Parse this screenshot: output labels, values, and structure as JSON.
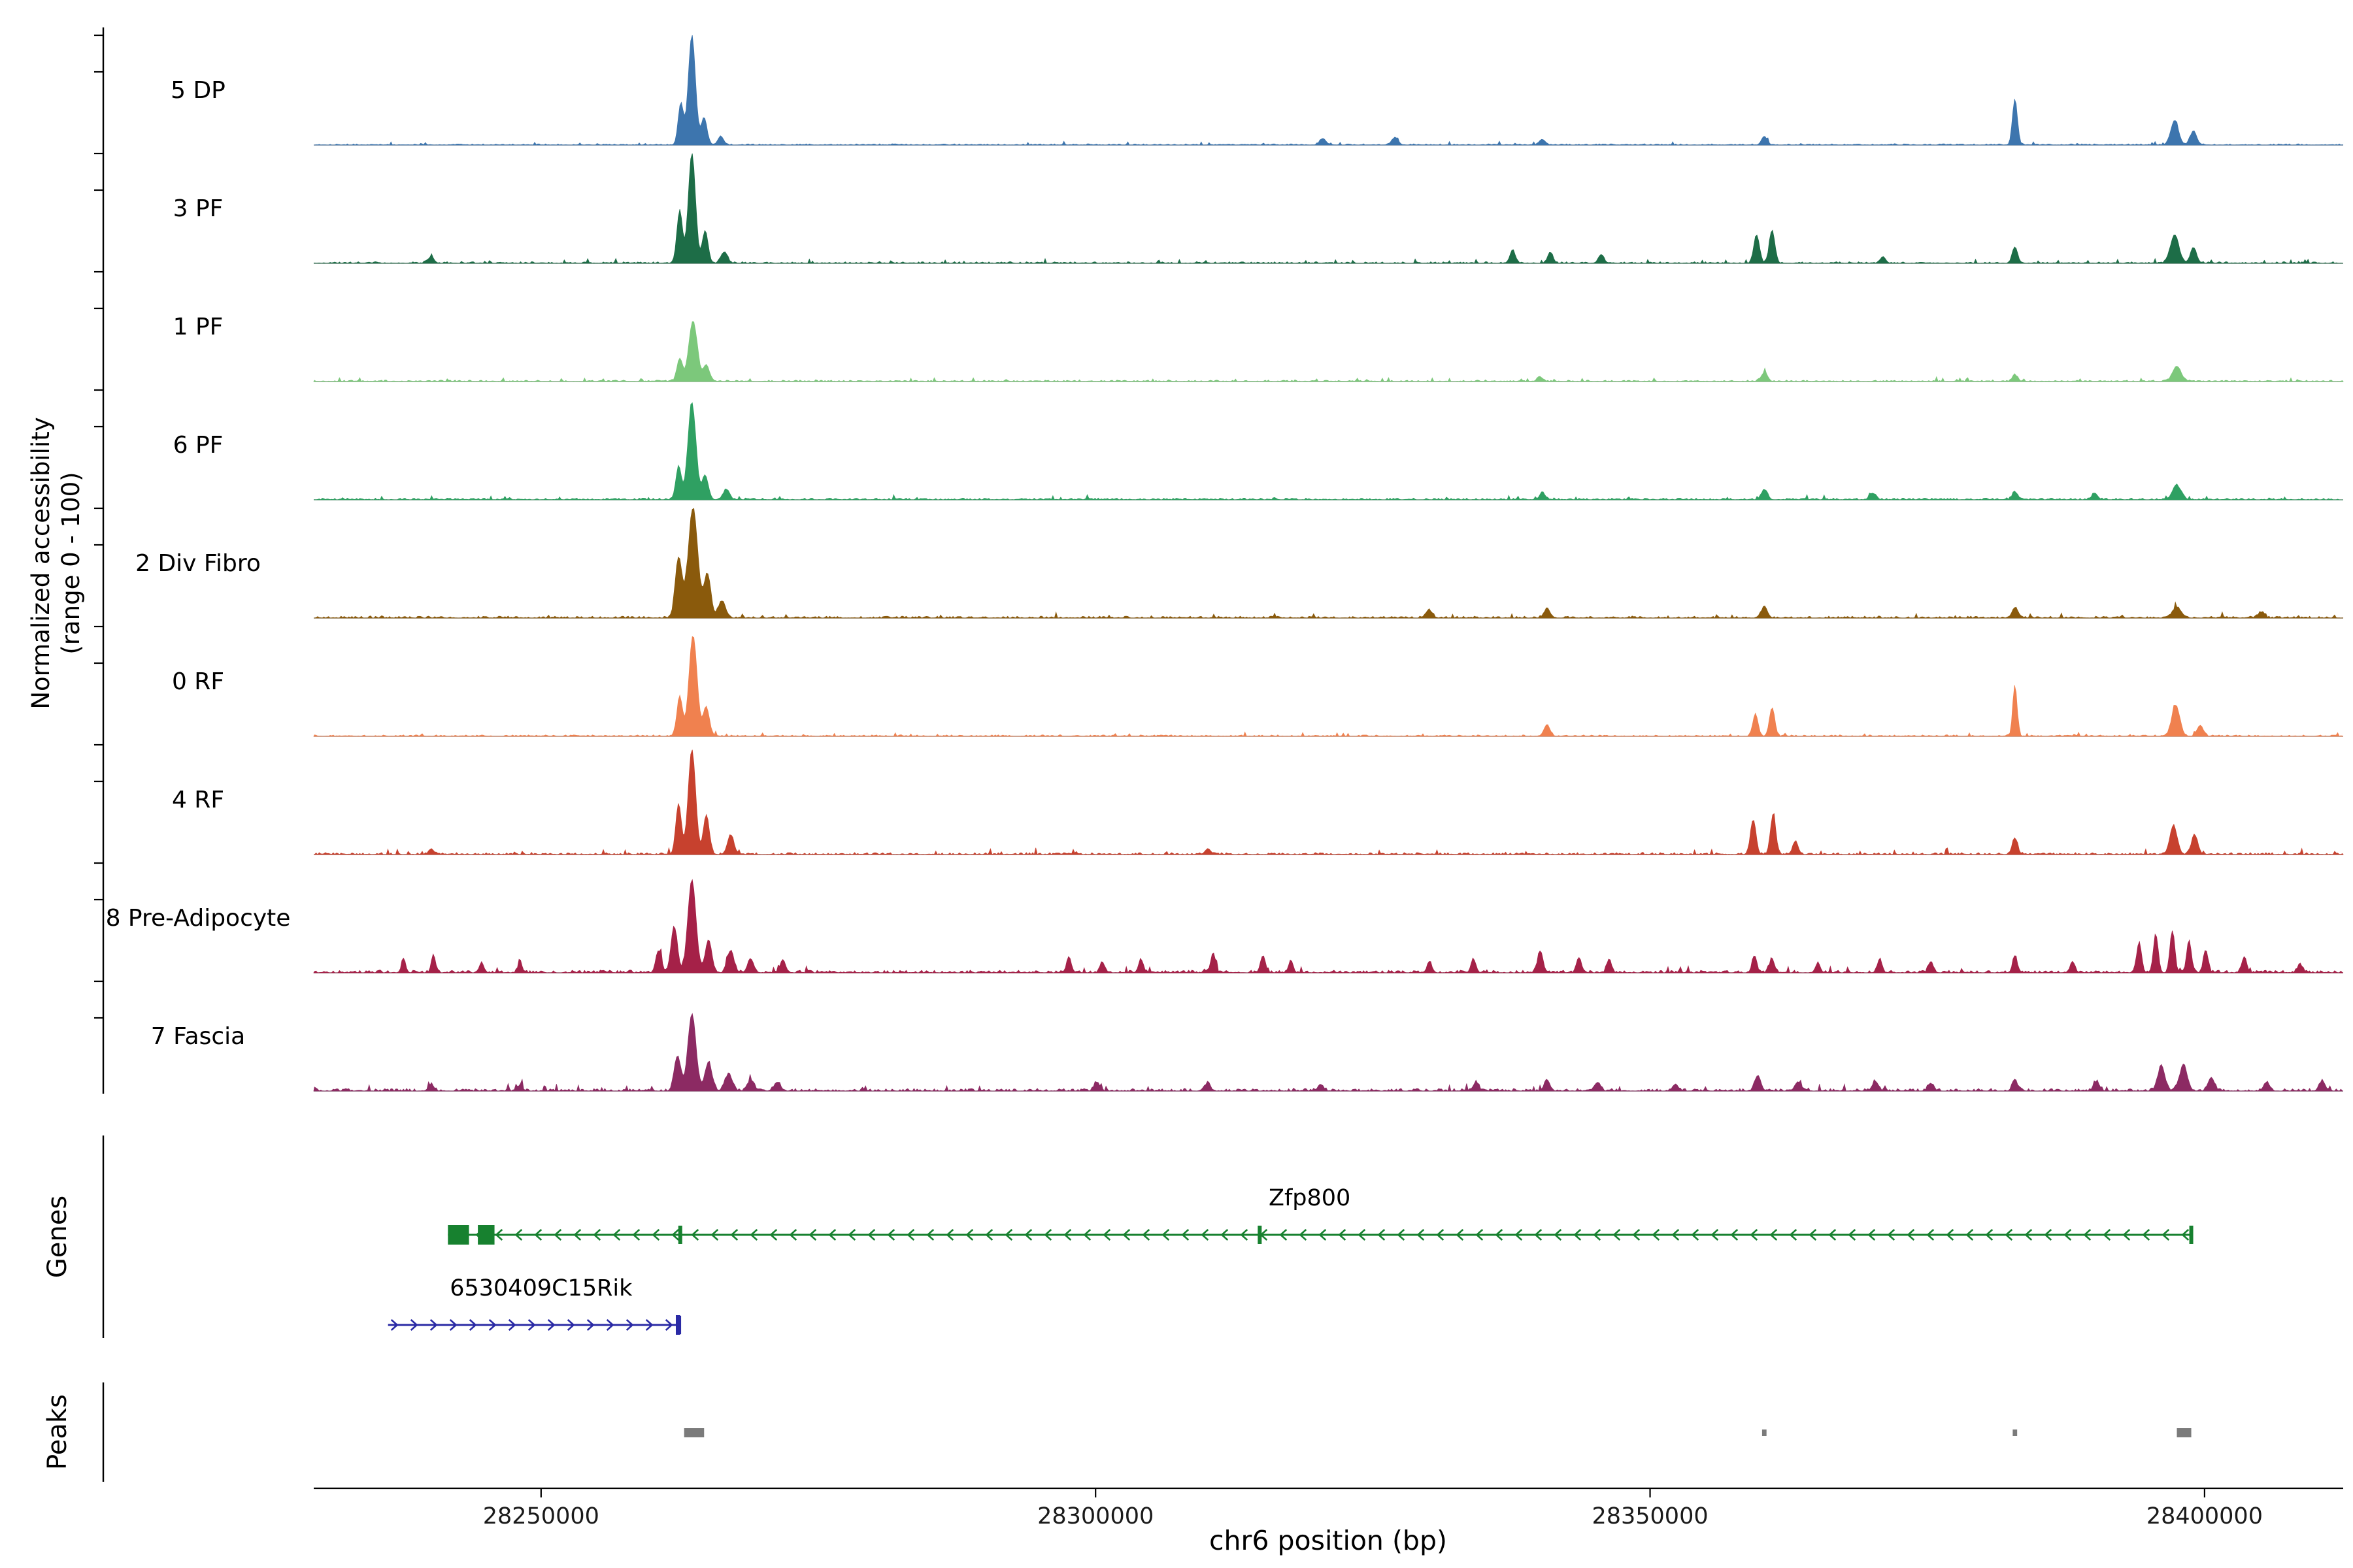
{
  "figure": {
    "y_label_line1": "Normalized accessibility",
    "y_label_line2": "(range 0 - 100)",
    "genes_section_label": "Genes",
    "peaks_section_label": "Peaks",
    "x_axis_title": "chr6 position (bp)"
  },
  "chart_data": {
    "type": "area",
    "title": "",
    "xlabel": "chr6 position (bp)",
    "ylabel": "Normalized accessibility (range 0 - 100)",
    "region": {
      "chrom": "chr6",
      "start": 28229500,
      "end": 28412500
    },
    "track_value_range": [
      0,
      100
    ],
    "x_ticks": [
      {
        "bp": 28250000,
        "label": "28250000"
      },
      {
        "bp": 28300000,
        "label": "28300000"
      },
      {
        "bp": 28350000,
        "label": "28350000"
      },
      {
        "bp": 28400000,
        "label": "28400000"
      }
    ],
    "tracks": [
      {
        "label": "5 DP",
        "color": "#3D75AE",
        "seed": 101,
        "noise": 1.6,
        "peaks": [
          [
            28263600,
            100,
            320
          ],
          [
            28262600,
            38,
            240
          ],
          [
            28264700,
            25,
            260
          ],
          [
            28266200,
            8,
            260
          ],
          [
            28320500,
            6,
            280
          ],
          [
            28327000,
            7,
            280
          ],
          [
            28340300,
            5,
            260
          ],
          [
            28360300,
            8,
            250
          ],
          [
            28382900,
            42,
            220
          ],
          [
            28397300,
            22,
            350
          ],
          [
            28399000,
            13,
            280
          ]
        ]
      },
      {
        "label": "3 PF",
        "color": "#1D6D47",
        "seed": 202,
        "noise": 2.1,
        "peaks": [
          [
            28263600,
            100,
            320
          ],
          [
            28262500,
            48,
            250
          ],
          [
            28264800,
            30,
            250
          ],
          [
            28266500,
            10,
            280
          ],
          [
            28240000,
            5,
            250
          ],
          [
            28337600,
            12,
            240
          ],
          [
            28341000,
            10,
            240
          ],
          [
            28345600,
            8,
            240
          ],
          [
            28359600,
            26,
            250
          ],
          [
            28361000,
            30,
            250
          ],
          [
            28371000,
            6,
            240
          ],
          [
            28382900,
            15,
            240
          ],
          [
            28397300,
            26,
            380
          ],
          [
            28399000,
            14,
            280
          ]
        ]
      },
      {
        "label": "1 PF",
        "color": "#7CC87B",
        "seed": 303,
        "noise": 1.9,
        "peaks": [
          [
            28263700,
            55,
            380
          ],
          [
            28262500,
            20,
            250
          ],
          [
            28264900,
            15,
            280
          ],
          [
            28340100,
            4,
            260
          ],
          [
            28360300,
            8,
            280
          ],
          [
            28382900,
            6,
            240
          ],
          [
            28397500,
            14,
            380
          ]
        ]
      },
      {
        "label": "6 PF",
        "color": "#2FA062",
        "seed": 404,
        "noise": 2.2,
        "peaks": [
          [
            28263600,
            88,
            360
          ],
          [
            28262400,
            30,
            250
          ],
          [
            28264800,
            22,
            280
          ],
          [
            28266700,
            9,
            280
          ],
          [
            28340300,
            6,
            260
          ],
          [
            28360300,
            9,
            280
          ],
          [
            28370100,
            6,
            250
          ],
          [
            28382900,
            7,
            250
          ],
          [
            28390100,
            6,
            250
          ],
          [
            28397500,
            13,
            380
          ]
        ]
      },
      {
        "label": "2 Div Fibro",
        "color": "#8A5A0C",
        "seed": 505,
        "noise": 2.5,
        "peaks": [
          [
            28263700,
            100,
            430
          ],
          [
            28262400,
            55,
            300
          ],
          [
            28265000,
            40,
            300
          ],
          [
            28266300,
            15,
            340
          ],
          [
            28330100,
            7,
            280
          ],
          [
            28340700,
            8,
            280
          ],
          [
            28360300,
            10,
            280
          ],
          [
            28382900,
            9,
            250
          ],
          [
            28397500,
            10,
            380
          ],
          [
            28405100,
            5,
            280
          ]
        ]
      },
      {
        "label": "0 RF",
        "color": "#F0814F",
        "seed": 606,
        "noise": 1.9,
        "peaks": [
          [
            28263700,
            92,
            360
          ],
          [
            28262500,
            36,
            250
          ],
          [
            28264900,
            26,
            280
          ],
          [
            28340700,
            10,
            280
          ],
          [
            28359500,
            20,
            240
          ],
          [
            28361000,
            26,
            240
          ],
          [
            28382900,
            47,
            190
          ],
          [
            28397400,
            28,
            360
          ],
          [
            28399600,
            10,
            280
          ]
        ]
      },
      {
        "label": "4 RF",
        "color": "#C7412E",
        "seed": 707,
        "noise": 2.6,
        "peaks": [
          [
            28263600,
            96,
            330
          ],
          [
            28262400,
            46,
            250
          ],
          [
            28264900,
            36,
            270
          ],
          [
            28267100,
            18,
            290
          ],
          [
            28240100,
            5,
            240
          ],
          [
            28310100,
            5,
            240
          ],
          [
            28359300,
            32,
            240
          ],
          [
            28361100,
            36,
            240
          ],
          [
            28363100,
            12,
            240
          ],
          [
            28382900,
            15,
            240
          ],
          [
            28397200,
            26,
            330
          ],
          [
            28399100,
            18,
            280
          ]
        ]
      },
      {
        "label": "8 Pre-Adipocyte",
        "color": "#A52148",
        "seed": 808,
        "noise": 3.4,
        "peaks": [
          [
            28263600,
            85,
            360
          ],
          [
            28262000,
            42,
            290
          ],
          [
            28265100,
            30,
            290
          ],
          [
            28267100,
            20,
            290
          ],
          [
            28268900,
            12,
            280
          ],
          [
            28260600,
            20,
            250
          ],
          [
            28237600,
            12,
            190
          ],
          [
            28240300,
            16,
            190
          ],
          [
            28244600,
            8,
            190
          ],
          [
            28248100,
            10,
            190
          ],
          [
            28271800,
            12,
            240
          ],
          [
            28297600,
            14,
            210
          ],
          [
            28300600,
            10,
            210
          ],
          [
            28304100,
            12,
            210
          ],
          [
            28310600,
            18,
            210
          ],
          [
            28315100,
            16,
            210
          ],
          [
            28317600,
            10,
            210
          ],
          [
            28330100,
            10,
            210
          ],
          [
            28334100,
            12,
            210
          ],
          [
            28340100,
            20,
            240
          ],
          [
            28343600,
            14,
            210
          ],
          [
            28346300,
            12,
            210
          ],
          [
            28359400,
            15,
            210
          ],
          [
            28361000,
            13,
            210
          ],
          [
            28365100,
            8,
            210
          ],
          [
            28370700,
            12,
            210
          ],
          [
            28375300,
            10,
            210
          ],
          [
            28382900,
            15,
            210
          ],
          [
            28388100,
            10,
            210
          ],
          [
            28394100,
            28,
            210
          ],
          [
            28395600,
            35,
            210
          ],
          [
            28397100,
            38,
            210
          ],
          [
            28398600,
            30,
            210
          ],
          [
            28400100,
            20,
            210
          ],
          [
            28403600,
            14,
            210
          ],
          [
            28408600,
            8,
            210
          ]
        ]
      },
      {
        "label": "7 Fascia",
        "color": "#8C2A63",
        "seed": 909,
        "noise": 3.4,
        "peaks": [
          [
            28263600,
            70,
            360
          ],
          [
            28262300,
            32,
            290
          ],
          [
            28265100,
            26,
            310
          ],
          [
            28266900,
            15,
            330
          ],
          [
            28268900,
            10,
            290
          ],
          [
            28271300,
            8,
            290
          ],
          [
            28240100,
            6,
            240
          ],
          [
            28248100,
            5,
            240
          ],
          [
            28300100,
            8,
            250
          ],
          [
            28310100,
            7,
            250
          ],
          [
            28320300,
            6,
            250
          ],
          [
            28334300,
            8,
            250
          ],
          [
            28340700,
            10,
            250
          ],
          [
            28345300,
            8,
            250
          ],
          [
            28352300,
            6,
            250
          ],
          [
            28359700,
            14,
            270
          ],
          [
            28363300,
            8,
            250
          ],
          [
            28370300,
            9,
            250
          ],
          [
            28375300,
            7,
            250
          ],
          [
            28382900,
            9,
            250
          ],
          [
            28390300,
            8,
            250
          ],
          [
            28396100,
            22,
            330
          ],
          [
            28398100,
            24,
            330
          ],
          [
            28400600,
            12,
            290
          ],
          [
            28405600,
            8,
            270
          ],
          [
            28410600,
            9,
            270
          ]
        ]
      }
    ],
    "genes": [
      {
        "name": "Zfp800",
        "strand": "-",
        "color": "#17812F",
        "start": 28241600,
        "end": 28398900,
        "exons": [
          [
            28241600,
            28243500
          ],
          [
            28244300,
            28245800
          ]
        ],
        "exon_ticks": [
          28262550,
          28314800,
          28398800
        ],
        "label_bp": 28319300
      },
      {
        "name": "6530409C15Rik",
        "strand": "+",
        "color": "#2A2AA5",
        "start": 28236200,
        "end": 28262550,
        "exons": [
          [
            28262150,
            28262550
          ]
        ],
        "exon_ticks": [
          28262450
        ],
        "label_bp": 28250000
      }
    ],
    "peaks_track": {
      "color": "#7B7B7B",
      "intervals": [
        [
          28262900,
          28264700
        ],
        [
          28360100,
          28360500
        ],
        [
          28382700,
          28383100
        ],
        [
          28397500,
          28398800
        ]
      ]
    }
  }
}
